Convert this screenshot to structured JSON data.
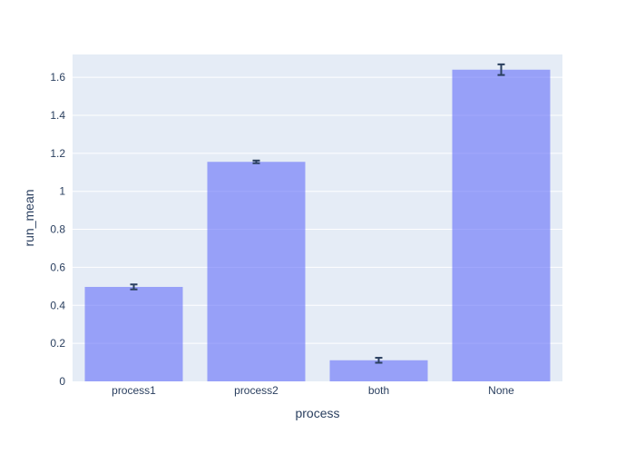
{
  "chart_data": {
    "type": "bar",
    "title": "",
    "xlabel": "process",
    "ylabel": "run_mean",
    "categories": [
      "process1",
      "process2",
      "both",
      "None"
    ],
    "values": [
      0.497,
      1.155,
      0.111,
      1.64
    ],
    "error": [
      0.013,
      0.007,
      0.013,
      0.028
    ],
    "ylim": [
      0,
      1.72
    ],
    "yticks": [
      0,
      0.2,
      0.4,
      0.6,
      0.8,
      1,
      1.2,
      1.4,
      1.6
    ],
    "ytick_labels": [
      "0",
      "0.2",
      "0.4",
      "0.6",
      "0.8",
      "1",
      "1.2",
      "1.4",
      "1.6"
    ],
    "grid": true,
    "colors": {
      "bar": "#636efa",
      "plot_bg": "#e5ecf6",
      "grid": "#ffffff",
      "error": "#2a3f5f",
      "text": "#2a3f5f"
    }
  }
}
